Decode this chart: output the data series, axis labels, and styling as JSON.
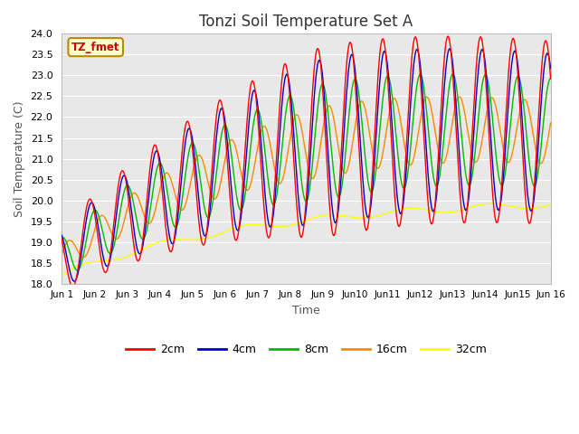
{
  "title": "Tonzi Soil Temperature Set A",
  "xlabel": "Time",
  "ylabel": "Soil Temperature (C)",
  "ylim": [
    18.0,
    24.0
  ],
  "xlim": [
    0,
    15
  ],
  "yticks": [
    18.0,
    18.5,
    19.0,
    19.5,
    20.0,
    20.5,
    21.0,
    21.5,
    22.0,
    22.5,
    23.0,
    23.5,
    24.0
  ],
  "xtick_labels": [
    "Jun 1",
    "Jun 2",
    "Jun 3",
    "Jun 4",
    "Jun 5",
    "Jun 6",
    "Jun 7",
    "Jun 8",
    "Jun 9",
    "Jun10",
    "Jun11",
    "Jun12",
    "Jun13",
    "Jun14",
    "Jun15",
    "Jun 16"
  ],
  "xtick_positions": [
    0,
    1,
    2,
    3,
    4,
    5,
    6,
    7,
    8,
    9,
    10,
    11,
    12,
    13,
    14,
    15
  ],
  "label_box_text": "TZ_fmet",
  "label_box_bg": "#ffffcc",
  "label_box_border": "#bb8800",
  "line_colors": {
    "2cm": "#ff0000",
    "4cm": "#0000cc",
    "8cm": "#00bb00",
    "16cm": "#ff8800",
    "32cm": "#ffff00"
  },
  "background_color": "#e8e8e8",
  "plot_bg": "#e8e8e8",
  "fig_bg": "#ffffff",
  "grid_color": "#ffffff",
  "title_fontsize": 12
}
